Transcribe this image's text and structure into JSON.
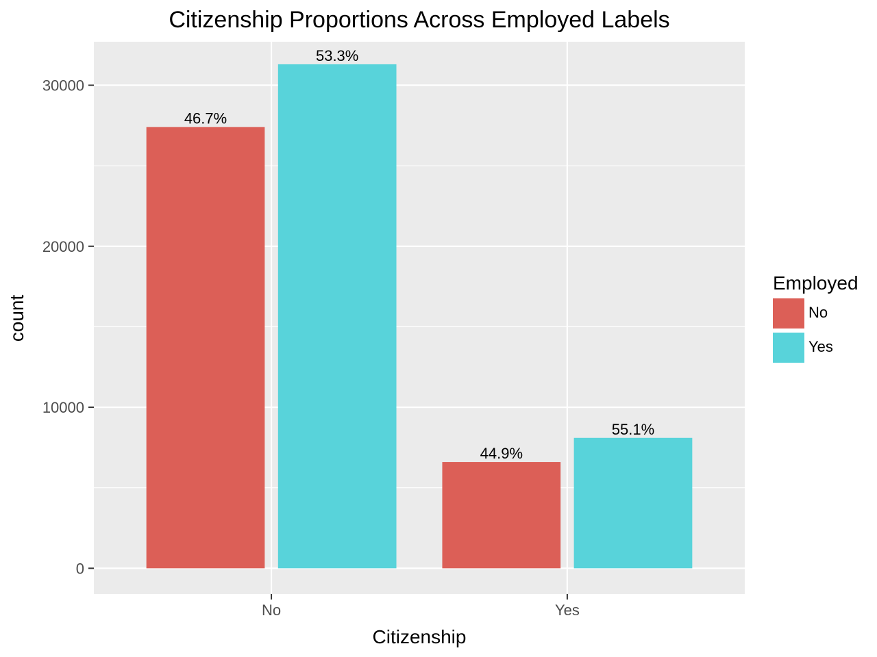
{
  "chart_data": {
    "type": "bar",
    "title": "Citizenship Proportions Across Employed Labels",
    "xlabel": "Citizenship",
    "ylabel": "count",
    "categories": [
      "No",
      "Yes"
    ],
    "series": [
      {
        "name": "No",
        "color": "#dc5f57",
        "values": [
          27400,
          6600
        ],
        "labels": [
          "46.7%",
          "44.9%"
        ]
      },
      {
        "name": "Yes",
        "color": "#58d3da",
        "values": [
          31300,
          8100
        ],
        "labels": [
          "53.3%",
          "55.1%"
        ]
      }
    ],
    "ylim": [
      -1600,
      32700
    ],
    "yticks": [
      0,
      10000,
      20000,
      30000
    ],
    "ytick_labels": [
      "0",
      "10000",
      "20000",
      "30000"
    ],
    "grid": true,
    "legend": {
      "title": "Employed",
      "position": "right"
    },
    "panel_background": "#ebebeb"
  }
}
